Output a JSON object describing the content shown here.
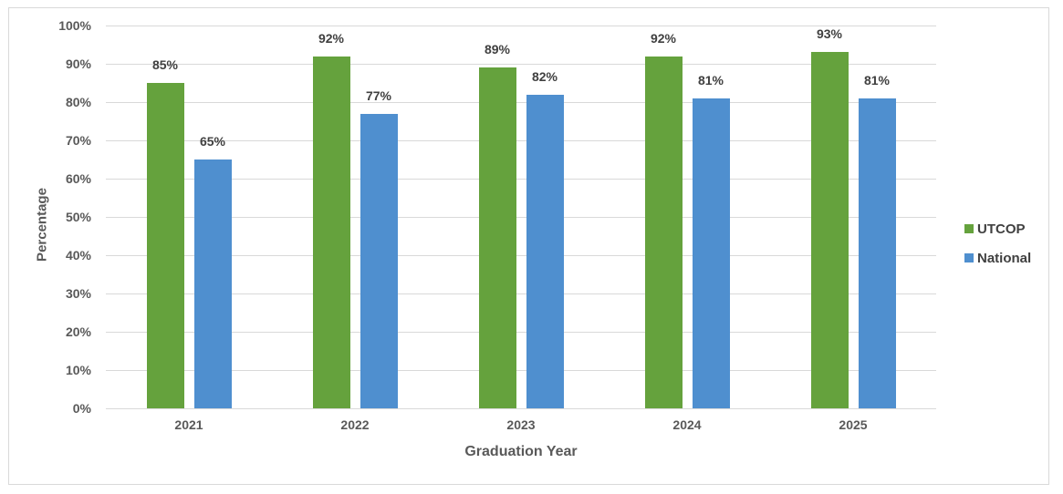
{
  "chart_data": {
    "type": "bar",
    "title": "",
    "xlabel": "Graduation Year",
    "ylabel": "Percentage",
    "categories": [
      "2021",
      "2022",
      "2023",
      "2024",
      "2025"
    ],
    "series": [
      {
        "name": "UTCOP",
        "color": "#65A23D",
        "values": [
          85,
          92,
          89,
          92,
          93
        ],
        "labels": [
          "85%",
          "92%",
          "89%",
          "92%",
          "93%"
        ]
      },
      {
        "name": "National",
        "color": "#4F8FCF",
        "values": [
          65,
          77,
          82,
          81,
          81
        ],
        "labels": [
          "65%",
          "77%",
          "82%",
          "81%",
          "81%"
        ]
      }
    ],
    "yticks": [
      "0%",
      "10%",
      "20%",
      "30%",
      "40%",
      "50%",
      "60%",
      "70%",
      "80%",
      "90%",
      "100%"
    ],
    "ylim": [
      0,
      100
    ],
    "grid": true,
    "legend_position": "right"
  }
}
